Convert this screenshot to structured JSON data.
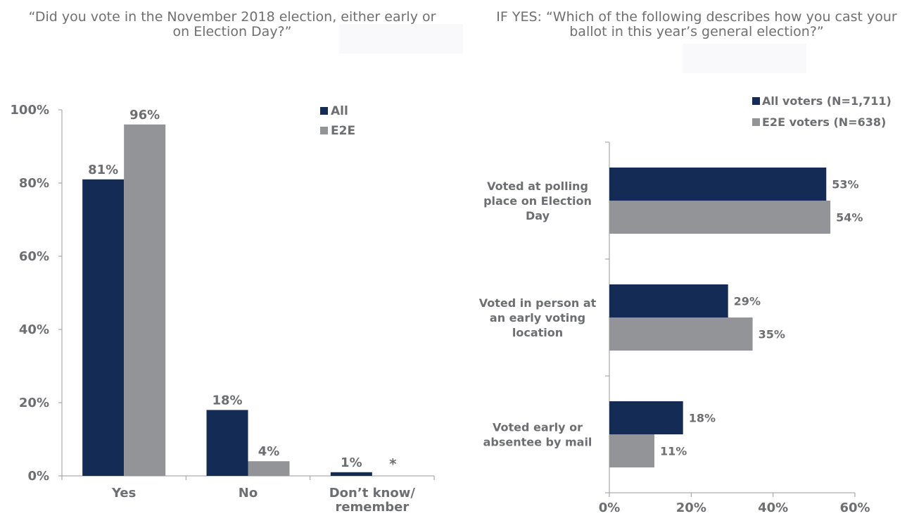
{
  "questions": {
    "left": "“Did you vote in the November 2018 election, either early or on Election Day?”",
    "right": "IF YES: “Which of the following describes how you cast your ballot in this year’s general election?”"
  },
  "colors": {
    "all": "#132b55",
    "e2e": "#929497",
    "axis": "#999999",
    "text": "#6d6e71"
  },
  "chart_data": [
    {
      "type": "bar",
      "categories": [
        [
          "Yes"
        ],
        [
          "No"
        ],
        [
          "Don’t know/",
          "remember"
        ]
      ],
      "series": [
        {
          "name": "All",
          "values": [
            81,
            18,
            1
          ],
          "labels": [
            "81%",
            "18%",
            "1%"
          ]
        },
        {
          "name": "E2E",
          "values": [
            96,
            4,
            null
          ],
          "labels": [
            "96%",
            "4%",
            "*"
          ]
        }
      ],
      "ylim": [
        0,
        100
      ],
      "yticks": [
        0,
        20,
        40,
        60,
        80,
        100
      ],
      "ytick_labels": [
        "0%",
        "20%",
        "40%",
        "60%",
        "80%",
        "100%"
      ],
      "legend": "top-right"
    },
    {
      "type": "bar",
      "orientation": "horizontal",
      "categories": [
        [
          "Voted at polling",
          "place on Election",
          "Day"
        ],
        [
          "Voted in person at",
          "an early voting",
          "location"
        ],
        [
          "Voted early or",
          "absentee by mail"
        ]
      ],
      "series": [
        {
          "name": "All voters (N=1,711)",
          "values": [
            53,
            29,
            18
          ],
          "labels": [
            "53%",
            "29%",
            "18%"
          ]
        },
        {
          "name": "E2E voters (N=638)",
          "values": [
            54,
            35,
            11
          ],
          "labels": [
            "54%",
            "35%",
            "11%"
          ]
        }
      ],
      "xlim": [
        0,
        60
      ],
      "xticks": [
        0,
        20,
        40,
        60
      ],
      "xtick_labels": [
        "0%",
        "20%",
        "40%",
        "60%"
      ],
      "legend": "top-right"
    }
  ]
}
